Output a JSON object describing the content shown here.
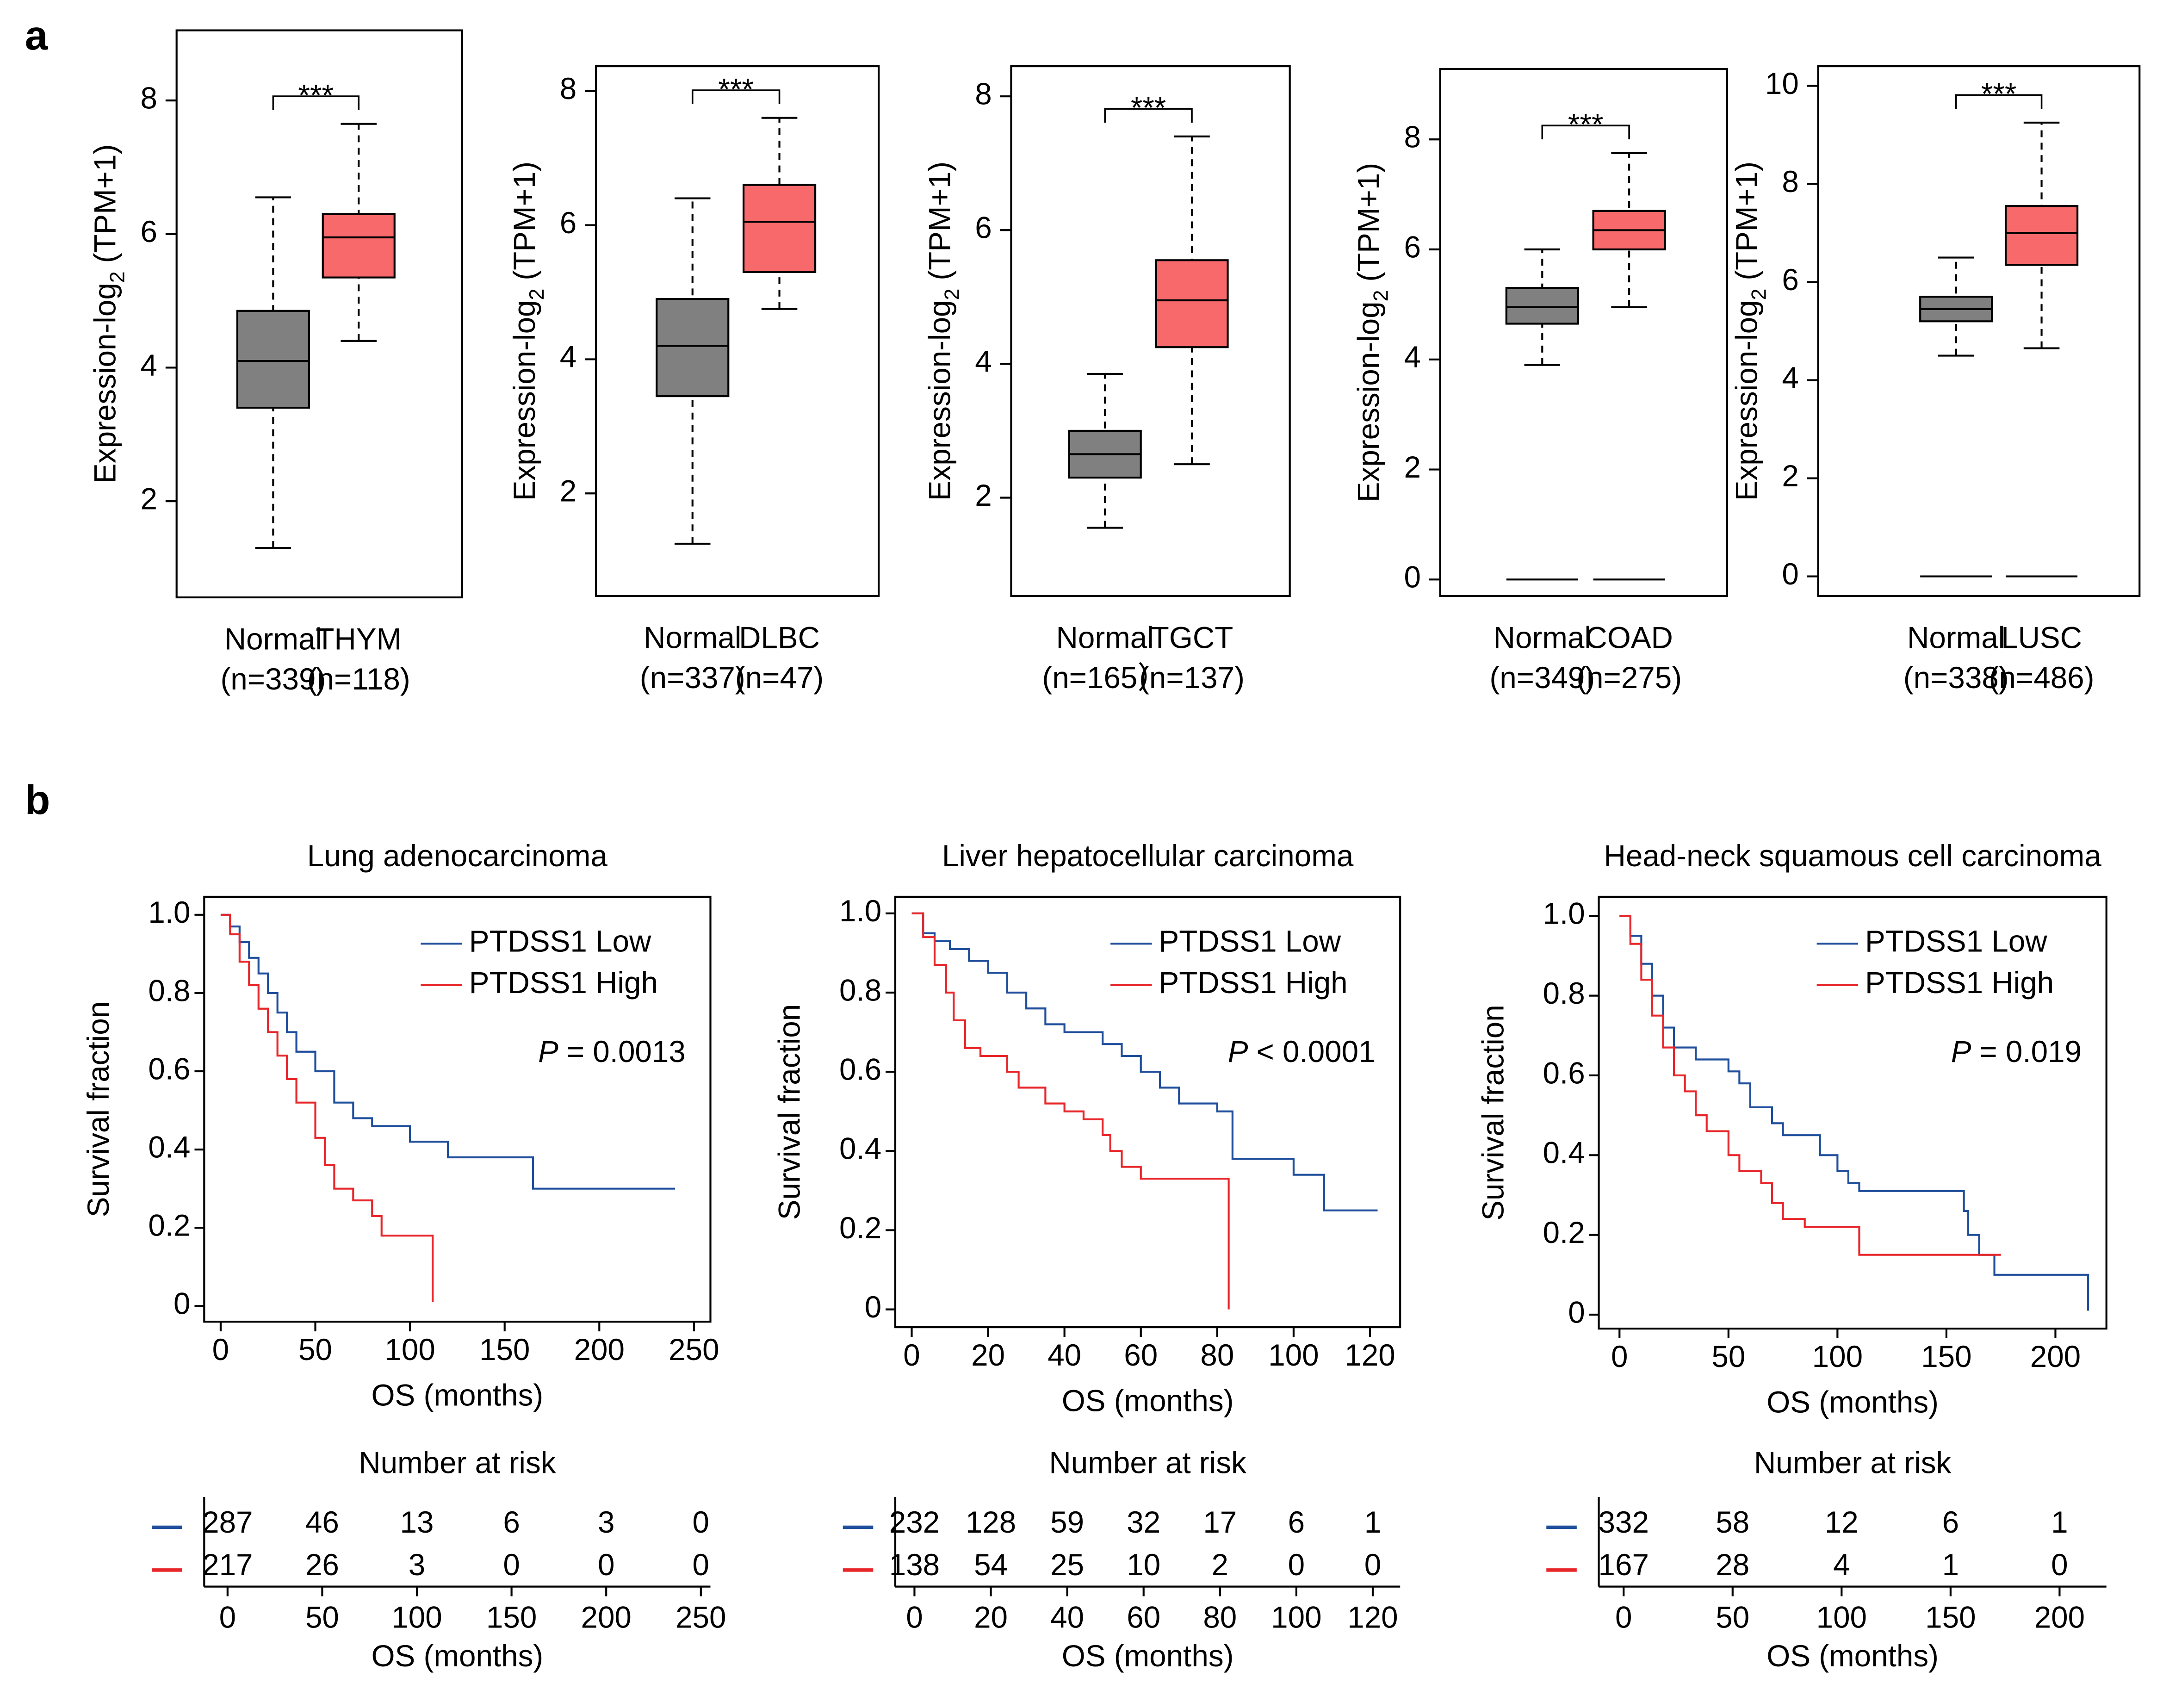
{
  "panel_labels": [
    "a",
    "b"
  ],
  "chart_data": [
    {
      "type": "box",
      "y_label": "Expression-log",
      "y_label_sub": "2",
      "y_label_suffix": "(TPM+1)",
      "categories": [
        "Normal",
        "THYM"
      ],
      "category_counts": [
        "(n=339)",
        "(n=118)"
      ],
      "significance": "***",
      "ylim": [
        0.56,
        9.05
      ],
      "yticks": [
        2,
        4,
        6,
        8
      ],
      "boxes": [
        {
          "color": "#808080",
          "whisker_low": 1.3,
          "q1": 3.4,
          "median": 4.1,
          "q3": 4.85,
          "whisker_high": 6.55
        },
        {
          "color": "#f8696b",
          "whisker_low": 4.4,
          "q1": 5.35,
          "median": 5.95,
          "q3": 6.3,
          "whisker_high": 7.65
        }
      ]
    },
    {
      "type": "box",
      "y_label": "Expression-log",
      "y_label_sub": "2",
      "y_label_suffix": "(TPM+1)",
      "categories": [
        "Normal",
        "DLBC"
      ],
      "category_counts": [
        "(n=337)",
        "(n=47)"
      ],
      "significance": "***",
      "ylim": [
        0.47,
        8.37
      ],
      "yticks": [
        2,
        4,
        6,
        8
      ],
      "boxes": [
        {
          "color": "#808080",
          "whisker_low": 1.25,
          "q1": 3.45,
          "median": 4.2,
          "q3": 4.9,
          "whisker_high": 6.4
        },
        {
          "color": "#f8696b",
          "whisker_low": 4.75,
          "q1": 5.3,
          "median": 6.05,
          "q3": 6.6,
          "whisker_high": 7.6
        }
      ]
    },
    {
      "type": "box",
      "y_label": "Expression-log",
      "y_label_sub": "2",
      "y_label_suffix": "(TPM+1)",
      "categories": [
        "Normal",
        "TGCT"
      ],
      "category_counts": [
        "(n=165）",
        "(n=137)"
      ],
      "significance": "***",
      "ylim": [
        0.53,
        8.45
      ],
      "yticks": [
        2,
        4,
        6,
        8
      ],
      "boxes": [
        {
          "color": "#808080",
          "whisker_low": 1.55,
          "q1": 2.3,
          "median": 2.65,
          "q3": 3.0,
          "whisker_high": 3.85
        },
        {
          "color": "#f8696b",
          "whisker_low": 2.5,
          "q1": 4.25,
          "median": 4.95,
          "q3": 5.55,
          "whisker_high": 7.4
        }
      ]
    },
    {
      "type": "box",
      "y_label": "Expression-log",
      "y_label_sub": "2",
      "y_label_suffix": "(TPM+1)",
      "categories": [
        "Normal",
        "COAD"
      ],
      "category_counts": [
        "(n=349)",
        "(n=275)"
      ],
      "significance": "***",
      "ylim": [
        -0.3,
        9.28
      ],
      "yticks": [
        0,
        2,
        4,
        6,
        8
      ],
      "boxes": [
        {
          "color": "#808080",
          "whisker_low": 3.9,
          "q1": 4.65,
          "median": 4.95,
          "q3": 5.3,
          "whisker_high": 6.0,
          "outlier": 0
        },
        {
          "color": "#f8696b",
          "whisker_low": 4.95,
          "q1": 6.0,
          "median": 6.35,
          "q3": 6.7,
          "whisker_high": 7.75,
          "outlier": 0
        }
      ]
    },
    {
      "type": "box",
      "y_label": "Expression-log",
      "y_label_sub": "2",
      "y_label_suffix": "(TPM+1)",
      "categories": [
        "Normal",
        "LUSC"
      ],
      "category_counts": [
        "(n=338)",
        "(n=486)"
      ],
      "significance": "***",
      "ylim": [
        -0.4,
        10.4
      ],
      "yticks": [
        0,
        2,
        4,
        6,
        8,
        10
      ],
      "boxes": [
        {
          "color": "#808080",
          "whisker_low": 4.5,
          "q1": 5.2,
          "median": 5.45,
          "q3": 5.7,
          "whisker_high": 6.5,
          "outlier": 0
        },
        {
          "color": "#f8696b",
          "whisker_low": 4.65,
          "q1": 6.35,
          "median": 7.0,
          "q3": 7.55,
          "whisker_high": 9.25,
          "outlier": 0
        }
      ]
    },
    {
      "type": "km",
      "title": "Lung adenocarcinoma",
      "x_label": "OS (months)",
      "y_label": "Survival fraction",
      "xlim": [
        -8.7,
        258.7
      ],
      "ylim": [
        -0.04,
        1.046
      ],
      "xticks": [
        0,
        50,
        100,
        150,
        200,
        250
      ],
      "yticks": [
        0,
        0.2,
        0.4,
        0.6,
        0.8,
        {
          "value": 1,
          "label": "1.0"
        }
      ],
      "p_label": "P",
      "p_text": "= 0.0013",
      "series": [
        {
          "name": "PTDSS1 Low",
          "color": "#1f4e9c",
          "x": [
            0,
            5,
            5,
            10,
            10,
            15,
            15,
            20,
            20,
            25,
            25,
            30,
            30,
            35,
            35,
            40,
            40,
            50,
            50,
            60,
            60,
            70,
            70,
            80,
            80,
            100,
            100,
            120,
            120,
            165,
            165,
            240
          ],
          "y": [
            1,
            1,
            0.97,
            0.97,
            0.93,
            0.93,
            0.89,
            0.89,
            0.85,
            0.85,
            0.8,
            0.8,
            0.75,
            0.75,
            0.7,
            0.7,
            0.65,
            0.65,
            0.6,
            0.6,
            0.52,
            0.52,
            0.48,
            0.48,
            0.46,
            0.46,
            0.42,
            0.42,
            0.38,
            0.38,
            0.3,
            0.3
          ]
        },
        {
          "name": "PTDSS1 High",
          "color": "#e8262a",
          "x": [
            0,
            5,
            5,
            10,
            10,
            15,
            15,
            20,
            20,
            25,
            25,
            30,
            30,
            35,
            35,
            40,
            40,
            50,
            50,
            55,
            55,
            60,
            60,
            70,
            70,
            80,
            80,
            85,
            85,
            112,
            112
          ],
          "y": [
            1,
            1,
            0.95,
            0.95,
            0.88,
            0.88,
            0.82,
            0.82,
            0.76,
            0.76,
            0.7,
            0.7,
            0.64,
            0.64,
            0.58,
            0.58,
            0.52,
            0.52,
            0.43,
            0.43,
            0.36,
            0.36,
            0.3,
            0.3,
            0.27,
            0.27,
            0.23,
            0.23,
            0.18,
            0.18,
            0.01
          ]
        }
      ],
      "risk_table": {
        "title": "Number at risk",
        "x_label": "OS (months)",
        "xticks": [
          0,
          50,
          100,
          150,
          200,
          250
        ],
        "rows": [
          [
            287,
            46,
            13,
            6,
            3,
            0
          ],
          [
            217,
            26,
            3,
            0,
            0,
            0
          ]
        ]
      }
    },
    {
      "type": "km",
      "title": "Liver hepatocellular carcinoma",
      "x_label": "OS (months)",
      "y_label": "Survival fraction",
      "xlim": [
        -4.3,
        127.9
      ],
      "ylim": [
        -0.045,
        1.042
      ],
      "xticks": [
        0,
        20,
        40,
        60,
        80,
        100,
        120
      ],
      "yticks": [
        0,
        0.2,
        0.4,
        0.6,
        0.8,
        {
          "value": 1,
          "label": "1.0"
        }
      ],
      "p_label": "P",
      "p_text": "< 0.0001",
      "series": [
        {
          "name": "PTDSS1 Low",
          "color": "#1f4e9c",
          "x": [
            0,
            3,
            3,
            6,
            6,
            10,
            10,
            15,
            15,
            20,
            20,
            25,
            25,
            30,
            30,
            35,
            35,
            40,
            40,
            50,
            50,
            55,
            55,
            60,
            60,
            65,
            65,
            70,
            70,
            80,
            80,
            84,
            84,
            100,
            100,
            108,
            108,
            122
          ],
          "y": [
            1,
            1,
            0.95,
            0.95,
            0.93,
            0.93,
            0.91,
            0.91,
            0.88,
            0.88,
            0.85,
            0.85,
            0.8,
            0.8,
            0.76,
            0.76,
            0.72,
            0.72,
            0.7,
            0.7,
            0.67,
            0.67,
            0.64,
            0.64,
            0.6,
            0.6,
            0.56,
            0.56,
            0.52,
            0.52,
            0.5,
            0.5,
            0.38,
            0.38,
            0.34,
            0.34,
            0.25,
            0.25
          ]
        },
        {
          "name": "PTDSS1 High",
          "color": "#e8262a",
          "x": [
            0,
            3,
            3,
            6,
            6,
            9,
            9,
            11,
            11,
            14,
            14,
            18,
            18,
            25,
            25,
            28,
            28,
            35,
            35,
            40,
            40,
            45,
            45,
            50,
            50,
            52,
            52,
            55,
            55,
            60,
            60,
            83,
            83
          ],
          "y": [
            1,
            1,
            0.94,
            0.94,
            0.87,
            0.87,
            0.8,
            0.8,
            0.73,
            0.73,
            0.66,
            0.66,
            0.64,
            0.64,
            0.6,
            0.6,
            0.56,
            0.56,
            0.52,
            0.52,
            0.5,
            0.5,
            0.48,
            0.48,
            0.44,
            0.44,
            0.4,
            0.4,
            0.36,
            0.36,
            0.33,
            0.33,
            0
          ]
        }
      ],
      "risk_table": {
        "title": "Number at risk",
        "x_label": "OS (months)",
        "xticks": [
          0,
          20,
          40,
          60,
          80,
          100,
          120
        ],
        "rows": [
          [
            232,
            128,
            59,
            32,
            17,
            6,
            1
          ],
          [
            138,
            54,
            25,
            10,
            2,
            0,
            0
          ]
        ]
      }
    },
    {
      "type": "km",
      "title": "Head-neck squamous cell carcinoma",
      "x_label": "OS (months)",
      "y_label": "Survival fraction",
      "xlim": [
        -9.5,
        223.4
      ],
      "ylim": [
        -0.035,
        1.048
      ],
      "xticks": [
        0,
        50,
        100,
        150,
        200
      ],
      "yticks": [
        0,
        0.2,
        0.4,
        0.6,
        0.8,
        {
          "value": 1,
          "label": "1.0"
        }
      ],
      "p_label": "P",
      "p_text": "= 0.019",
      "series": [
        {
          "name": "PTDSS1 Low",
          "color": "#1f4e9c",
          "x": [
            0,
            5,
            5,
            10,
            10,
            15,
            15,
            20,
            20,
            25,
            25,
            35,
            35,
            50,
            50,
            55,
            55,
            60,
            60,
            70,
            70,
            75,
            75,
            92,
            92,
            100,
            100,
            105,
            105,
            110,
            110,
            158,
            158,
            160,
            160,
            165,
            165,
            172,
            172,
            215,
            215
          ],
          "y": [
            1,
            1,
            0.95,
            0.95,
            0.88,
            0.88,
            0.8,
            0.8,
            0.72,
            0.72,
            0.67,
            0.67,
            0.64,
            0.64,
            0.61,
            0.61,
            0.58,
            0.58,
            0.52,
            0.52,
            0.48,
            0.48,
            0.45,
            0.45,
            0.4,
            0.4,
            0.36,
            0.36,
            0.33,
            0.33,
            0.31,
            0.31,
            0.26,
            0.26,
            0.2,
            0.2,
            0.15,
            0.15,
            0.1,
            0.1,
            0.01
          ]
        },
        {
          "name": "PTDSS1 High",
          "color": "#e8262a",
          "x": [
            0,
            5,
            5,
            10,
            10,
            15,
            15,
            20,
            20,
            25,
            25,
            30,
            30,
            35,
            35,
            40,
            40,
            50,
            50,
            55,
            55,
            65,
            65,
            70,
            70,
            75,
            75,
            85,
            85,
            110,
            110,
            175
          ],
          "y": [
            1,
            1,
            0.93,
            0.93,
            0.84,
            0.84,
            0.75,
            0.75,
            0.67,
            0.67,
            0.6,
            0.6,
            0.56,
            0.56,
            0.5,
            0.5,
            0.46,
            0.46,
            0.4,
            0.4,
            0.36,
            0.36,
            0.33,
            0.33,
            0.28,
            0.28,
            0.24,
            0.24,
            0.22,
            0.22,
            0.15,
            0.15
          ]
        }
      ],
      "risk_table": {
        "title": "Number at risk",
        "x_label": "OS (months)",
        "xticks": [
          0,
          50,
          100,
          150,
          200
        ],
        "rows": [
          [
            332,
            58,
            12,
            6,
            1
          ],
          [
            167,
            28,
            4,
            1,
            0
          ]
        ]
      }
    }
  ]
}
